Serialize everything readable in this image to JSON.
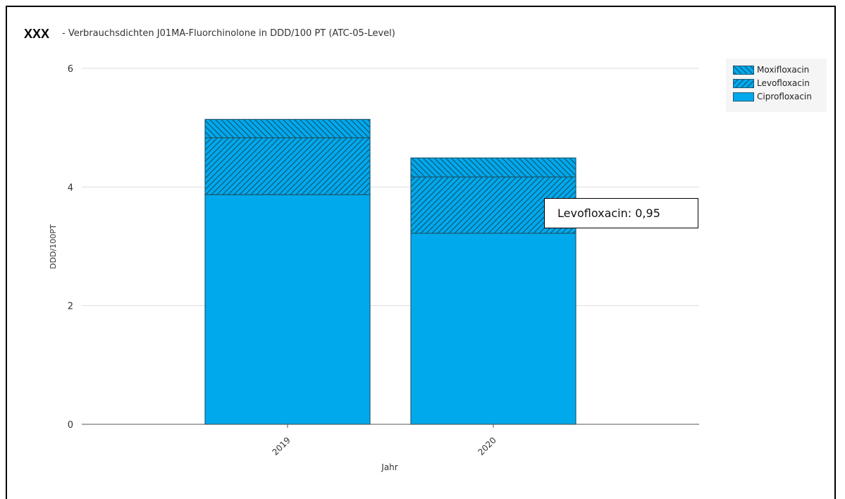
{
  "header": {
    "brand": "XXX",
    "title": "- Verbrauchsdichten J01MA-Fluorchinolone in DDD/100 PT (ATC-05-Level)"
  },
  "tooltip": {
    "text": "Levofloxacin: 0,95"
  },
  "colors": {
    "fill": "#00a9ec",
    "stroke": "#1c5a74",
    "hatch": "#124a63",
    "grid": "#dddddd",
    "axis": "#555555"
  },
  "chart_data": {
    "type": "bar",
    "stacked": true,
    "categories": [
      "2019",
      "2020"
    ],
    "xlabel": "Jahr",
    "ylabel": "DDD/100PT",
    "ylim": [
      0,
      6
    ],
    "yticks": [
      "0",
      "2",
      "4",
      "6"
    ],
    "grid": true,
    "legend_position": "top-right",
    "series": [
      {
        "name": "Ciprofloxacin",
        "values": [
          3.87,
          3.22
        ],
        "pattern": "solid"
      },
      {
        "name": "Levofloxacin",
        "values": [
          0.96,
          0.95
        ],
        "pattern": "hatch-forward"
      },
      {
        "name": "Moxifloxacin",
        "values": [
          0.31,
          0.32
        ],
        "pattern": "hatch-back"
      }
    ],
    "legend_order": [
      "Moxifloxacin",
      "Levofloxacin",
      "Ciprofloxacin"
    ]
  }
}
